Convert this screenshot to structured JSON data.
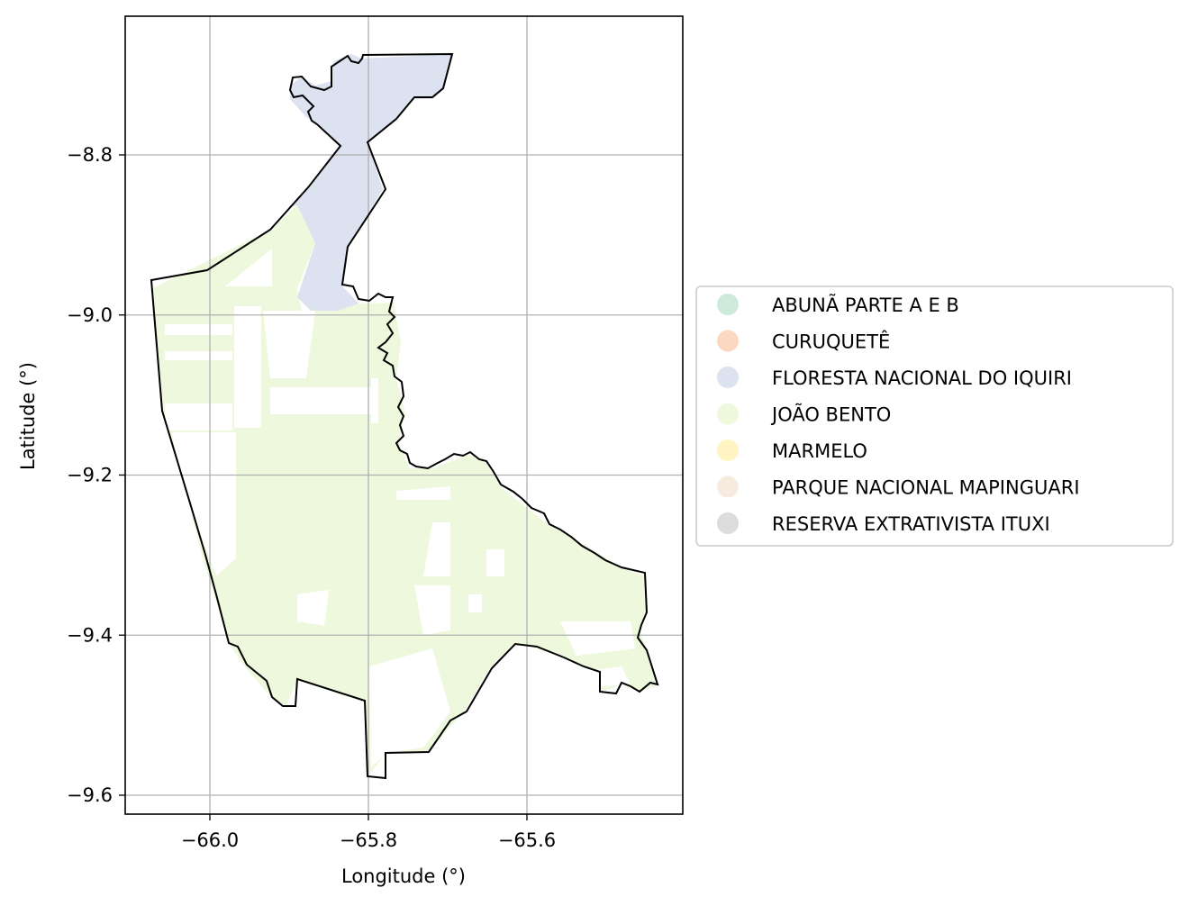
{
  "chart_data": {
    "type": "map",
    "xlabel": "Longitude (°)",
    "ylabel": "Latitude (°)",
    "xlim": [
      -66.105,
      -65.755
    ],
    "ylim": [
      -9.625,
      -8.625
    ],
    "x_ticks": [
      {
        "value": -66.0,
        "label": "−66.0"
      },
      {
        "value": -65.8,
        "label": "−65.8"
      },
      {
        "value": -65.6,
        "label": "−65.6"
      }
    ],
    "y_ticks": [
      {
        "value": -8.8,
        "label": "−8.8"
      },
      {
        "value": -9.0,
        "label": "−9.0"
      },
      {
        "value": -9.2,
        "label": "−9.2"
      },
      {
        "value": -9.4,
        "label": "−9.4"
      },
      {
        "value": -9.6,
        "label": "−9.6"
      }
    ],
    "grid": true,
    "legend_position": "right",
    "categories": [
      {
        "name": "ABUNÃ PARTE A E B",
        "color": "#cdeadb"
      },
      {
        "name": "CURUQUETÊ",
        "color": "#fdd8c0"
      },
      {
        "name": "FLORESTA NACIONAL DO IQUIRI",
        "color": "#dde2f0"
      },
      {
        "name": "JOÃO BENTO",
        "color": "#eef8dc"
      },
      {
        "name": "MARMELO",
        "color": "#fff4c2"
      },
      {
        "name": "PARQUE NACIONAL MAPINGUARI",
        "color": "#f7ebdf"
      },
      {
        "name": "RESERVA EXTRATIVISTA ITUXI",
        "color": "#dcdcdc"
      }
    ]
  }
}
